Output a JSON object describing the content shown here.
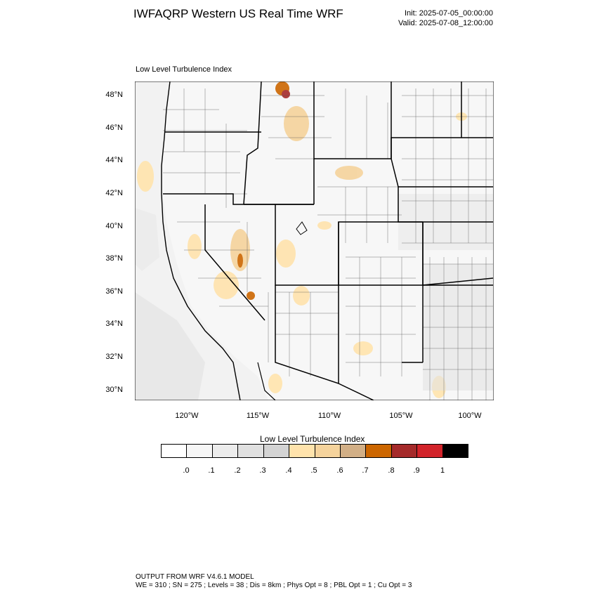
{
  "header": {
    "title": "IWFAQRP Western US Real Time WRF",
    "init": "Init: 2025-07-05_00:00:00",
    "valid": "Valid: 2025-07-08_12:00:00"
  },
  "plot": {
    "subtitle": "Low Level Turbulence Index",
    "lat_labels": [
      "48°N",
      "46°N",
      "44°N",
      "42°N",
      "40°N",
      "38°N",
      "36°N",
      "34°N",
      "32°N",
      "30°N"
    ],
    "lon_labels": [
      "120°W",
      "115°W",
      "110°W",
      "105°W",
      "100°W"
    ]
  },
  "colorbar": {
    "title": "Low Level Turbulence Index",
    "labels": [
      ".0",
      ".1",
      ".2",
      ".3",
      ".4",
      ".5",
      ".6",
      ".7",
      ".8",
      ".9",
      "1"
    ],
    "colors": [
      "#ffffff",
      "#f6f6f6",
      "#ececec",
      "#e0e0e0",
      "#d3d3d3",
      "#ffe3ac",
      "#f5d39c",
      "#d2af86",
      "#cc6600",
      "#a52a2a",
      "#d2232a",
      "#000000"
    ]
  },
  "footer": {
    "line1": "OUTPUT FROM WRF V4.6.1 MODEL",
    "line2": "WE = 310 ; SN = 275 ; Levels = 38 ; Dis = 8km ; Phys Opt = 8 ; PBL Opt = 1 ; Cu Opt = 3"
  }
}
